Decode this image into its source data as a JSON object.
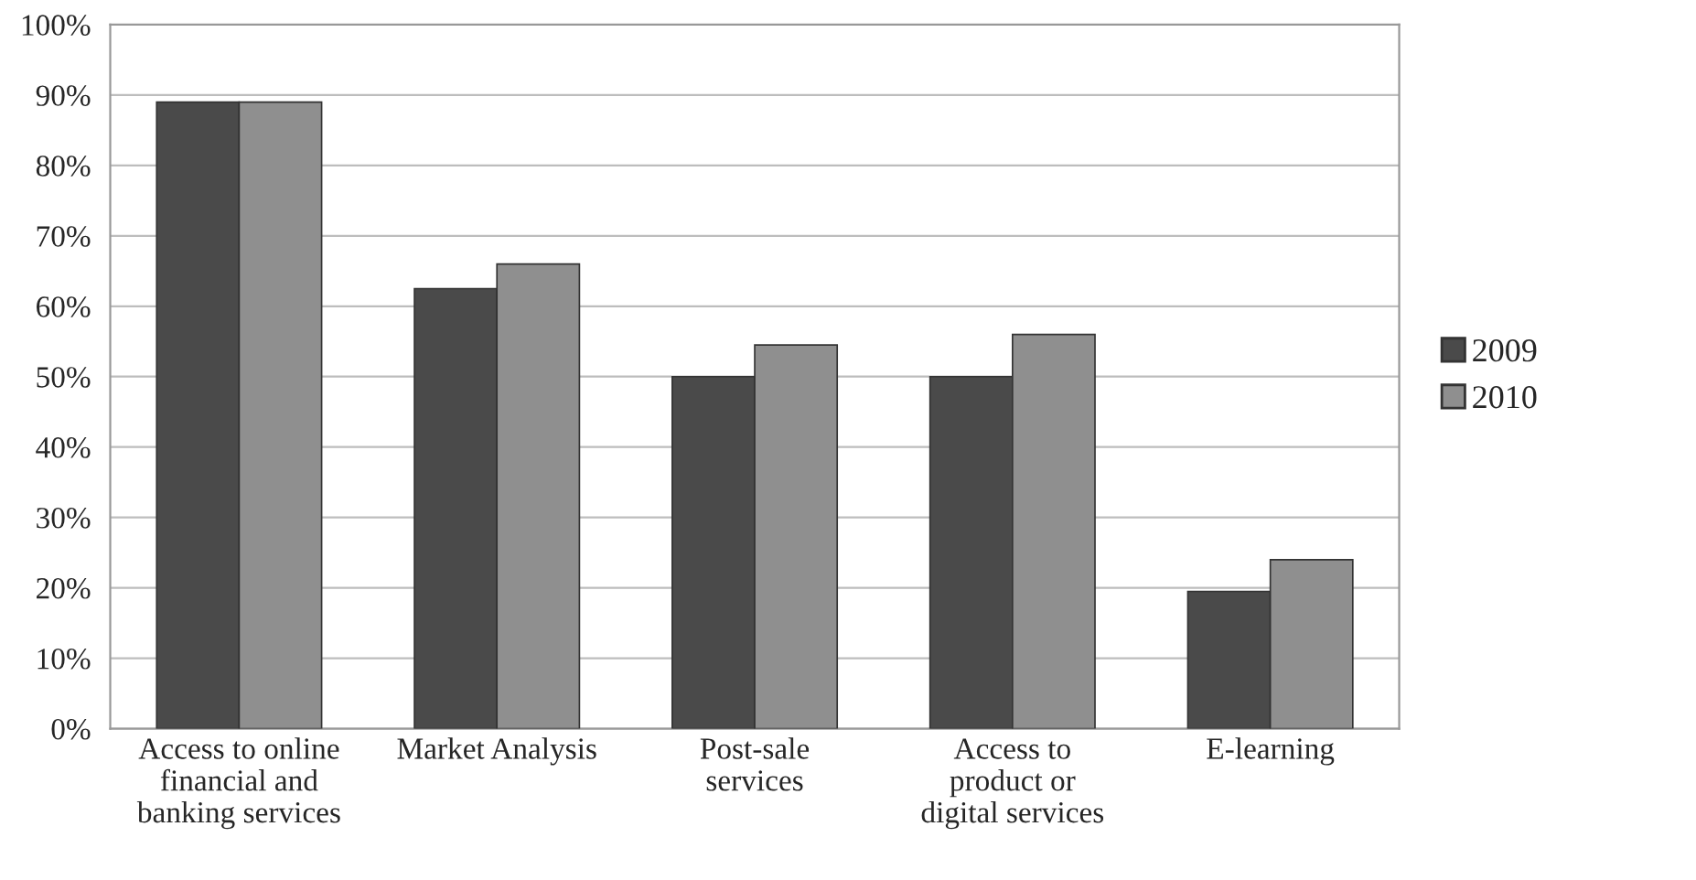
{
  "chart_data": {
    "type": "bar",
    "categories": [
      "Access to online\nfinancial and\nbanking services",
      "Market Analysis",
      "Post-sale\nservices",
      "Access to\nproduct or\ndigital services",
      "E-learning"
    ],
    "series": [
      {
        "name": "2009",
        "color": "#4a4a4a",
        "values": [
          89,
          62.5,
          50,
          50,
          19.5
        ]
      },
      {
        "name": "2010",
        "color": "#8f8f8f",
        "values": [
          89,
          66,
          54.5,
          56,
          24
        ]
      }
    ],
    "ylim": [
      0,
      100
    ],
    "yticks": [
      {
        "value": 0,
        "label": "0%"
      },
      {
        "value": 10,
        "label": "10%"
      },
      {
        "value": 20,
        "label": "20%"
      },
      {
        "value": 30,
        "label": "30%"
      },
      {
        "value": 40,
        "label": "40%"
      },
      {
        "value": 50,
        "label": "50%"
      },
      {
        "value": 60,
        "label": "60%"
      },
      {
        "value": 70,
        "label": "70%"
      },
      {
        "value": 80,
        "label": "80%"
      },
      {
        "value": 90,
        "label": "90%"
      },
      {
        "value": 100,
        "label": "100%"
      }
    ],
    "grid": "y",
    "legend": "right"
  }
}
